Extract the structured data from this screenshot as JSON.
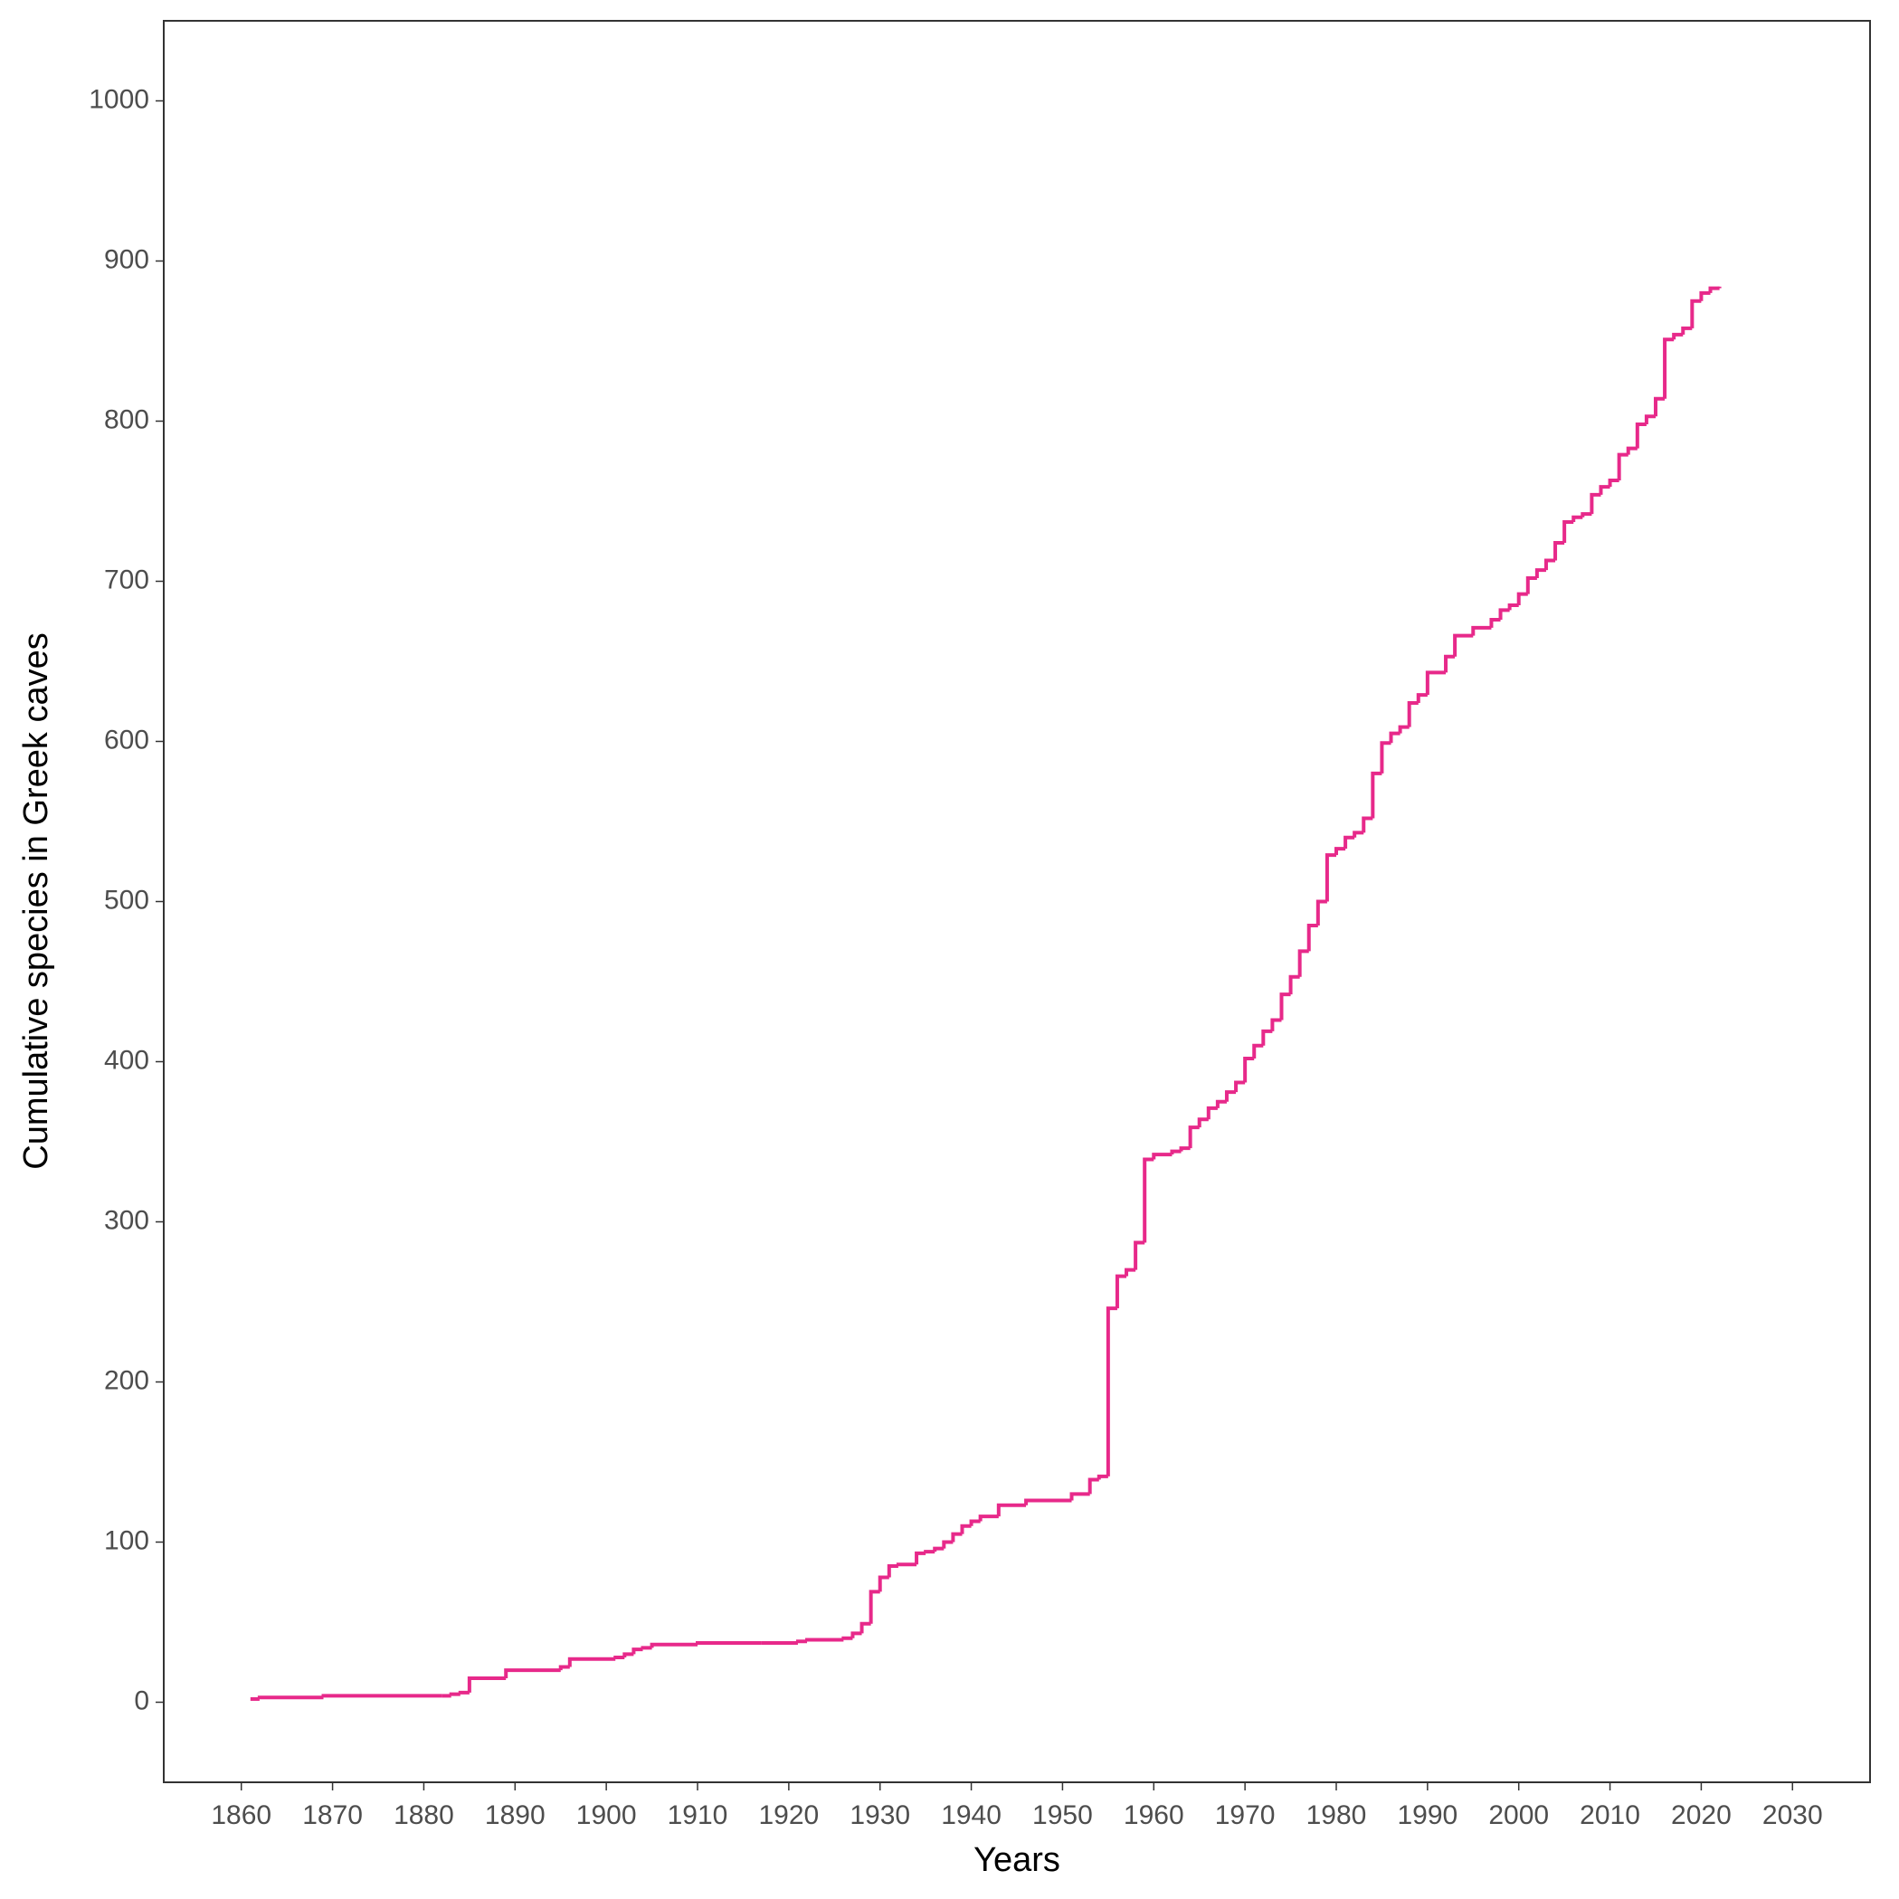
{
  "chart_data": {
    "type": "step",
    "xlabel": "Years",
    "ylabel": "Cumulative species in Greek caves",
    "xlim": [
      1851.5,
      2038.5
    ],
    "ylim": [
      -50,
      1050
    ],
    "xticks": [
      1860,
      1870,
      1880,
      1890,
      1900,
      1910,
      1920,
      1930,
      1940,
      1950,
      1960,
      1970,
      1980,
      1990,
      2000,
      2010,
      2020,
      2030
    ],
    "yticks": [
      0,
      100,
      200,
      300,
      400,
      500,
      600,
      700,
      800,
      900,
      1000
    ],
    "color": "#e7298a",
    "x": [
      1861,
      1862,
      1869,
      1882,
      1883,
      1884,
      1885,
      1889,
      1895,
      1896,
      1901,
      1902,
      1903,
      1904,
      1905,
      1910,
      1917,
      1921,
      1922,
      1926,
      1927,
      1928,
      1929,
      1930,
      1931,
      1932,
      1934,
      1935,
      1936,
      1937,
      1938,
      1939,
      1940,
      1941,
      1943,
      1946,
      1951,
      1953,
      1954,
      1955,
      1956,
      1957,
      1958,
      1959,
      1960,
      1962,
      1963,
      1964,
      1965,
      1966,
      1967,
      1968,
      1969,
      1970,
      1971,
      1972,
      1973,
      1974,
      1975,
      1976,
      1977,
      1978,
      1979,
      1980,
      1981,
      1982,
      1983,
      1984,
      1985,
      1986,
      1987,
      1988,
      1989,
      1990,
      1992,
      1993,
      1995,
      1997,
      1998,
      1999,
      2000,
      2001,
      2002,
      2003,
      2004,
      2005,
      2006,
      2007,
      2008,
      2009,
      2010,
      2011,
      2012,
      2013,
      2014,
      2015,
      2016,
      2017,
      2018,
      2019,
      2020,
      2021,
      2022
    ],
    "values": [
      2,
      3,
      4,
      4,
      5,
      6,
      15,
      20,
      22,
      27,
      28,
      30,
      33,
      34,
      36,
      37,
      37,
      38,
      39,
      40,
      43,
      49,
      69,
      78,
      85,
      86,
      93,
      94,
      96,
      100,
      105,
      110,
      113,
      116,
      123,
      126,
      130,
      139,
      141,
      246,
      266,
      270,
      287,
      339,
      342,
      344,
      346,
      359,
      364,
      371,
      375,
      381,
      387,
      402,
      410,
      419,
      426,
      442,
      453,
      469,
      485,
      500,
      529,
      533,
      540,
      543,
      552,
      580,
      599,
      605,
      609,
      624,
      629,
      643,
      653,
      666,
      671,
      676,
      682,
      685,
      692,
      702,
      707,
      713,
      724,
      737,
      740,
      742,
      754,
      759,
      763,
      779,
      783,
      798,
      803,
      814,
      851,
      854,
      858,
      875,
      880,
      883,
      884
    ]
  }
}
